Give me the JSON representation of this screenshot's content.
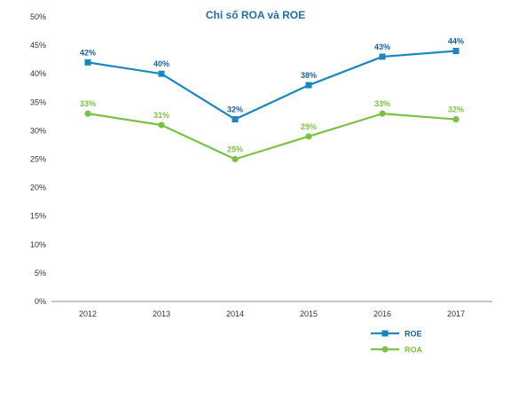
{
  "chart_data": {
    "type": "line",
    "title": "Chỉ số ROA và ROE",
    "categories": [
      "2012",
      "2013",
      "2014",
      "2015",
      "2016",
      "2017"
    ],
    "series": [
      {
        "name": "ROE",
        "values": [
          42,
          40,
          32,
          38,
          43,
          44
        ],
        "labels": [
          "42%",
          "40%",
          "32%",
          "38%",
          "43%",
          "44%"
        ],
        "color": "#1a86c0",
        "label_color": "#1a5e96",
        "marker": "square"
      },
      {
        "name": "ROA",
        "values": [
          33,
          31,
          25,
          29,
          33,
          32
        ],
        "labels": [
          "33%",
          "31%",
          "25%",
          "29%",
          "33%",
          "32%"
        ],
        "color": "#7cc242",
        "label_color": "#7cc242",
        "marker": "circle"
      }
    ],
    "ylim": [
      0,
      50
    ],
    "yticks": [
      "0%",
      "5%",
      "10%",
      "15%",
      "20%",
      "25%",
      "30%",
      "35%",
      "40%",
      "45%",
      "50%"
    ],
    "grid": false,
    "legend_position": "bottom-right"
  }
}
